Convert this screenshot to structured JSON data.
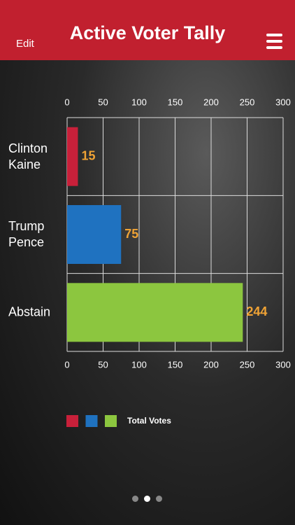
{
  "header": {
    "edit": "Edit",
    "title": "Active Voter Tally"
  },
  "chart_data": {
    "type": "bar",
    "orientation": "horizontal",
    "categories": [
      "Clinton\nKaine",
      "Trump\nPence",
      "Abstain"
    ],
    "series": [
      {
        "name": "Total Votes",
        "values": [
          15,
          75,
          244
        ],
        "colors": [
          "#c8203a",
          "#1f72c0",
          "#8cc63f"
        ]
      }
    ],
    "xlim": [
      0,
      300
    ],
    "xticks": [
      0,
      50,
      100,
      150,
      200,
      250,
      300
    ],
    "grid": true
  }
}
